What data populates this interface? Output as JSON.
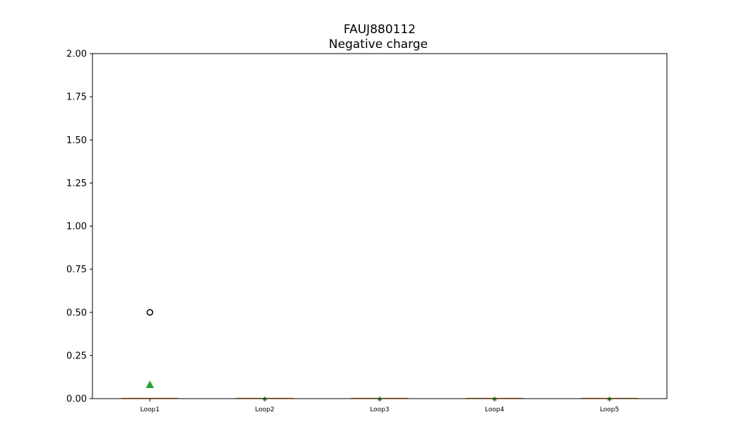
{
  "chart_data": {
    "type": "box",
    "title": "FAUJ880112",
    "subtitle": "Negative charge",
    "xlabel": "",
    "ylabel": "",
    "ylim": [
      0,
      2.0
    ],
    "yticks": [
      "0.00",
      "0.25",
      "0.50",
      "0.75",
      "1.00",
      "1.25",
      "1.50",
      "1.75",
      "2.00"
    ],
    "grid": false,
    "categories": [
      "Loop1",
      "Loop2",
      "Loop3",
      "Loop4",
      "Loop5"
    ],
    "boxes": [
      {
        "min": 0,
        "q1": 0,
        "median": 0,
        "q3": 0,
        "max": 0,
        "mean": 0.08,
        "outliers": [
          0.5
        ]
      },
      {
        "min": 0,
        "q1": 0,
        "median": 0,
        "q3": 0,
        "max": 0,
        "mean": 0.0,
        "outliers": []
      },
      {
        "min": 0,
        "q1": 0,
        "median": 0,
        "q3": 0,
        "max": 0,
        "mean": 0.0,
        "outliers": []
      },
      {
        "min": 0,
        "q1": 0,
        "median": 0,
        "q3": 0,
        "max": 0,
        "mean": 0.0,
        "outliers": []
      },
      {
        "min": 0,
        "q1": 0,
        "median": 0,
        "q3": 0,
        "max": 0,
        "mean": 0.0,
        "outliers": []
      }
    ],
    "colors": {
      "median": "#ff7f0e",
      "mean": "#2ca02c",
      "outlier": "#000000",
      "box": "#000000"
    }
  }
}
